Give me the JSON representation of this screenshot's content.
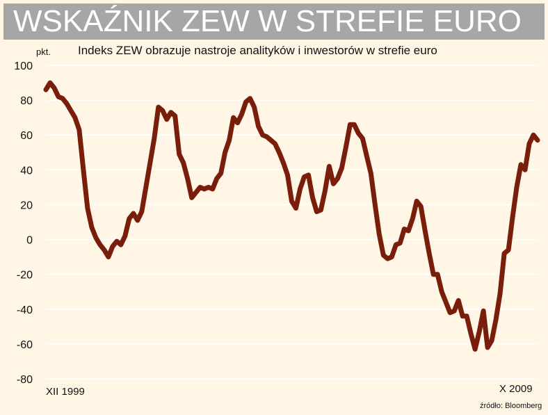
{
  "header": {
    "title": "WSKAŹNIK ZEW W STREFIE EURO"
  },
  "chart_data": {
    "type": "line",
    "subtitle": "Indeks ZEW obrazuje nastroje analityków i inwestorów w strefie euro",
    "unit_label": "pkt.",
    "x_start_label": "XII 1999",
    "x_end_label": "X 2009",
    "source": "źródło: Bloomberg",
    "ylim": [
      -80,
      100
    ],
    "yticks": [
      100,
      80,
      60,
      40,
      20,
      0,
      -20,
      -40,
      -60,
      -80
    ],
    "grid": true,
    "series": [
      {
        "color": "#7a1e0c",
        "values": [
          86,
          90,
          87,
          82,
          81,
          78,
          74,
          70,
          63,
          40,
          18,
          7,
          1,
          -3,
          -6,
          -10,
          -4,
          -1,
          -3,
          2,
          12,
          15,
          11,
          16,
          30,
          44,
          58,
          76,
          74,
          69,
          73,
          71,
          49,
          44,
          35,
          24,
          27,
          30,
          29,
          30,
          29,
          35,
          38,
          50,
          57,
          70,
          67,
          72,
          79,
          81,
          76,
          65,
          60,
          59,
          57,
          55,
          50,
          44,
          37,
          22,
          18,
          29,
          36,
          37,
          24,
          16,
          17,
          28,
          42,
          32,
          35,
          41,
          53,
          66,
          66,
          61,
          58,
          48,
          38,
          20,
          3,
          -9,
          -11,
          -10,
          -3,
          -2,
          6,
          5,
          12,
          22,
          19,
          5,
          -8,
          -20,
          -20,
          -30,
          -36,
          -42,
          -41,
          -35,
          -44,
          -44,
          -54,
          -63,
          -53,
          -41,
          -62,
          -58,
          -46,
          -31,
          -8,
          -6,
          13,
          30,
          43,
          40,
          55,
          60,
          57
        ]
      }
    ]
  }
}
